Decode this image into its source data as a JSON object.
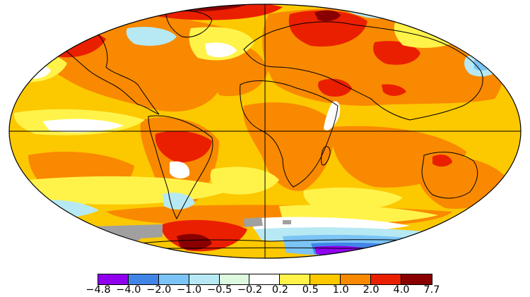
{
  "legend": {
    "colors": [
      "#9000ee",
      "#4184e7",
      "#7bc4f5",
      "#b6e9f3",
      "#ddf9e0",
      "#ffffff",
      "#fff34a",
      "#fcc800",
      "#f98900",
      "#ea1f00",
      "#8a0000"
    ],
    "labels": [
      "−4.8",
      "−4.0",
      "−2.0",
      "−1.0",
      "−0.5",
      "−0.2",
      "0.2",
      "0.5",
      "1.0",
      "2.0",
      "4.0",
      "7.7"
    ]
  },
  "map": {
    "colors": {
      "ocean_base": "#fcc800",
      "warm": "#f98900",
      "hot": "#ea1f00",
      "extreme": "#8a0000",
      "slight_warm": "#fff34a",
      "neutral": "#ffffff",
      "slight_cool": "#ddf9e0",
      "cool": "#b6e9f3",
      "cold": "#7bc4f5",
      "colder": "#4184e7",
      "coldest": "#9000ee",
      "missing": "#a0a0a0",
      "coastline": "#000000"
    }
  }
}
